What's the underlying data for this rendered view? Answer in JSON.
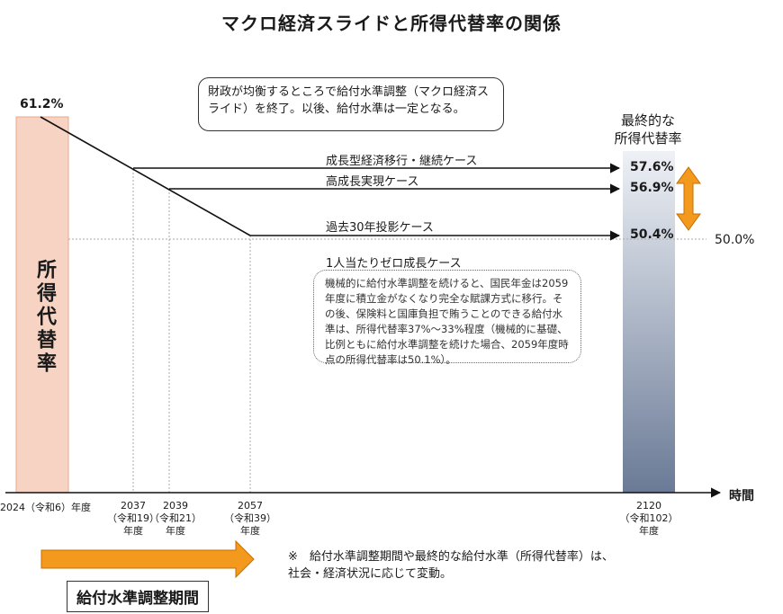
{
  "title": "マクロ経済スライドと所得代替率の関係",
  "start_value": "61.2%",
  "y_axis_label": "所得代替率",
  "callout": "財政が均衡するところで給付水準調整（マクロ経済スライド）を終了。以後、給付水準は一定となる。",
  "final_label": "最終的な\n所得代替率",
  "floor_label": "50.0%",
  "cases": [
    {
      "name": "成長型経済移行・継続ケース",
      "value": "57.6%"
    },
    {
      "name": "高成長実現ケース",
      "value": "56.9%"
    },
    {
      "name": "過去30年投影ケース",
      "value": "50.4%"
    }
  ],
  "zero_growth": {
    "name": "1人当たりゼロ成長ケース",
    "note": "機械的に給付水準調整を続けると、国民年金は2059年度に積立金がなくなり完全な賦課方式に移行。その後、保険料と国庫負担で賄うことのできる給付水準は、所得代替率37%～33%程度（機械的に基礎、比例ともに給付水準調整を続けた場合、2059年度時点の所得代替率は50.1%）。"
  },
  "x_axis_label": "時間",
  "x_ticks": [
    {
      "label": "2024（令和6）年度"
    },
    {
      "label": "2037\n（令和19）\n年度"
    },
    {
      "label": "2039\n（令和21）\n年度"
    },
    {
      "label": "2057\n（令和39）\n年度"
    },
    {
      "label": "2120\n（令和102）\n年度"
    }
  ],
  "adjustment_period_label": "給付水準調整期間",
  "footnote": "※　給付水準調整期間や最終的な給付水準（所得代替率）は、\n社会・経済状況に応じて変動。",
  "colors": {
    "start_bar": "#f7d3c3",
    "start_bar_border": "#e9a88a",
    "final_bar_top": "#eef1f6",
    "final_bar_bottom": "#6a7a96",
    "arrow_orange": "#f39a1e",
    "arrow_orange_dark": "#c46f00"
  },
  "chart_data": {
    "type": "line",
    "title": "マクロ経済スライドと所得代替率の関係",
    "xlabel": "時間",
    "ylabel": "所得代替率",
    "series": [
      {
        "name": "成長型経済移行・継続ケース",
        "x": [
          2024,
          2037,
          2120
        ],
        "values": [
          61.2,
          57.6,
          57.6
        ]
      },
      {
        "name": "高成長実現ケース",
        "x": [
          2024,
          2039,
          2120
        ],
        "values": [
          61.2,
          56.9,
          56.9
        ]
      },
      {
        "name": "過去30年投影ケース",
        "x": [
          2024,
          2057,
          2120
        ],
        "values": [
          61.2,
          50.4,
          50.4
        ]
      }
    ],
    "reference_line": 50.0
  }
}
